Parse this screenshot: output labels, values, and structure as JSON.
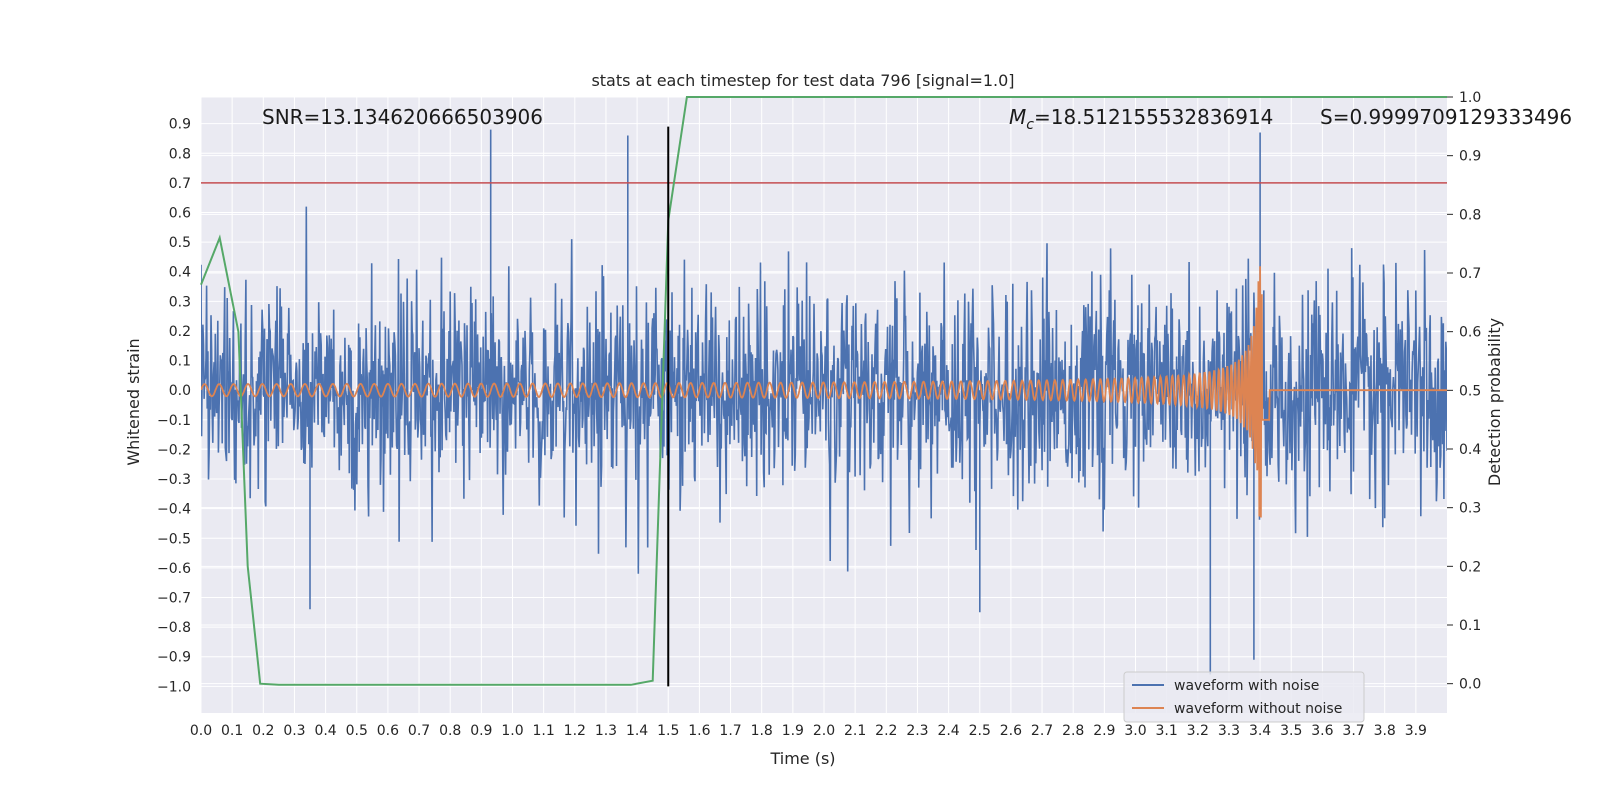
{
  "colors": {
    "background": "#ffffff",
    "axes_face": "#eaeaf2",
    "grid": "#ffffff",
    "noisy": "#4c72b0",
    "clean": "#dd8452",
    "probability": "#55a868",
    "threshold": "#c44e52",
    "marker": "#000000"
  },
  "chart_data": {
    "type": "line",
    "title": "stats at each timestep for test data 796 [signal=1.0]",
    "xlabel": "Time (s)",
    "ylabel_left": "Whitened strain",
    "ylabel_right": "Detection probability",
    "xlim": [
      0,
      4
    ],
    "ylim_left": [
      -1.09,
      0.99
    ],
    "ylim_right": [
      -0.05,
      1.0
    ],
    "x_ticks": [
      "0.0",
      "0.1",
      "0.2",
      "0.3",
      "0.4",
      "0.5",
      "0.6",
      "0.7",
      "0.8",
      "0.9",
      "1.0",
      "1.1",
      "1.2",
      "1.3",
      "1.4",
      "1.5",
      "1.6",
      "1.7",
      "1.8",
      "1.9",
      "2.0",
      "2.1",
      "2.2",
      "2.3",
      "2.4",
      "2.5",
      "2.6",
      "2.7",
      "2.8",
      "2.9",
      "3.0",
      "3.1",
      "3.2",
      "3.3",
      "3.4",
      "3.5",
      "3.6",
      "3.7",
      "3.8",
      "3.9"
    ],
    "y_ticks_left": [
      "0.9",
      "0.8",
      "0.7",
      "0.6",
      "0.5",
      "0.4",
      "0.3",
      "0.2",
      "0.1",
      "0.0",
      "−0.1",
      "−0.2",
      "−0.3",
      "−0.4",
      "−0.5",
      "−0.6",
      "−0.7",
      "−0.8",
      "−0.9",
      "−1.0"
    ],
    "y_ticks_right": [
      "1.0",
      "0.9",
      "0.8",
      "0.7",
      "0.6",
      "0.5",
      "0.4",
      "0.3",
      "0.2",
      "0.1",
      "0.0"
    ],
    "grid": true,
    "legend_position": "lower-right",
    "series": [
      {
        "name": "waveform with noise",
        "axis": "left",
        "description_values": {
          "typical_range": [
            -0.4,
            0.4
          ],
          "spikes": [
            [
              0.93,
              0.88
            ],
            [
              1.37,
              0.86
            ],
            [
              3.4,
              0.87
            ],
            [
              3.24,
              -0.96
            ],
            [
              3.38,
              -0.91
            ],
            [
              0.35,
              -0.74
            ],
            [
              2.5,
              -0.75
            ]
          ]
        }
      },
      {
        "name": "waveform without noise",
        "axis": "left",
        "chirp": {
          "start_amplitude": 0.02,
          "merger_time": 3.41,
          "peak_amplitude": 0.43,
          "start_frequency_hz": 20,
          "end_frequency_hz": 90
        }
      },
      {
        "name": "",
        "axis": "right",
        "x": [
          0.0,
          0.06,
          0.12,
          0.15,
          0.19,
          0.25,
          0.5,
          1.0,
          1.38,
          1.45,
          1.5,
          1.56,
          4.0
        ],
        "y": [
          0.68,
          0.76,
          0.6,
          0.2,
          0.0,
          -0.002,
          -0.002,
          -0.002,
          -0.002,
          0.005,
          0.79,
          1.0,
          1.0
        ]
      }
    ],
    "threshold_line": {
      "axis": "left",
      "y": 0.7
    },
    "vertical_marker": {
      "x": 1.5,
      "y_range": [
        -1.0,
        0.89
      ]
    },
    "annotations": {
      "snr": "SNR=13.134620666503906",
      "mc_symbol": "M",
      "mc_subscript": "c",
      "mc_value": "=18.512155532836914",
      "s": "S=0.9999709129333496"
    }
  }
}
